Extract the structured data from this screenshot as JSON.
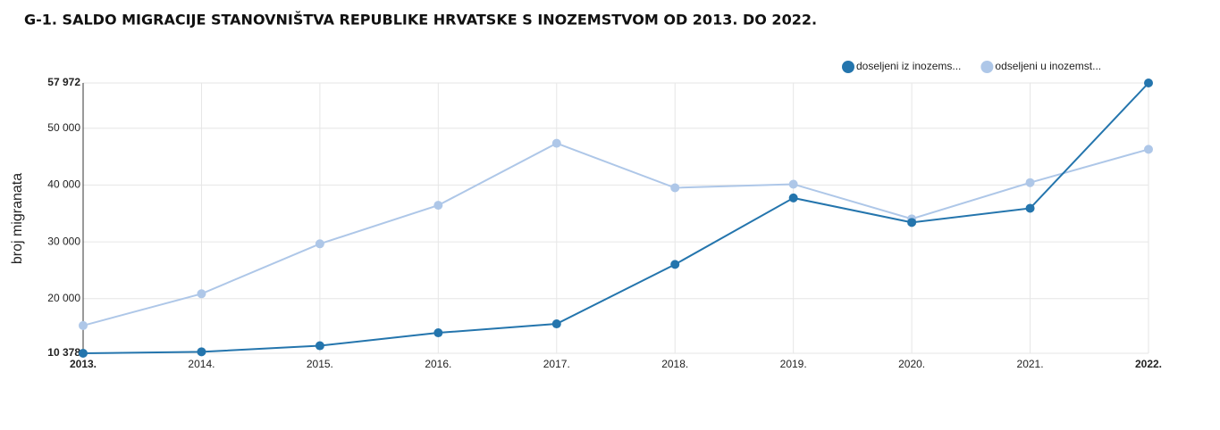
{
  "chart_data": {
    "type": "line",
    "title": "G-1. SALDO MIGRACIJE STANOVNIŠTVA REPUBLIKE HRVATSKE S INOZEMSTVOM OD 2013. DO 2022.",
    "y_label": "broj migranata",
    "categories": [
      "2013.",
      "2014.",
      "2015.",
      "2016.",
      "2017.",
      "2018.",
      "2019.",
      "2020.",
      "2021.",
      "2022."
    ],
    "series": [
      {
        "name": "doseljeni iz inozems...",
        "color": "#2475ad",
        "values": [
          10378,
          10638,
          11706,
          13985,
          15553,
          26029,
          37726,
          33414,
          35912,
          57972
        ]
      },
      {
        "name": "odseljeni u inozemst...",
        "color": "#aec7e8",
        "values": [
          15262,
          20858,
          29651,
          36436,
          47352,
          39515,
          40148,
          34046,
          40424,
          46287
        ]
      }
    ],
    "ylim": [
      10378,
      57972
    ],
    "yticks": [
      {
        "value": 10378,
        "label": "10 378"
      },
      {
        "value": 20000,
        "label": "20 000"
      },
      {
        "value": 30000,
        "label": "30 000"
      },
      {
        "value": 40000,
        "label": "40 000"
      },
      {
        "value": 50000,
        "label": "50 000"
      },
      {
        "value": 57972,
        "label": "57 972"
      }
    ],
    "grid": true,
    "legend": "top-right"
  }
}
